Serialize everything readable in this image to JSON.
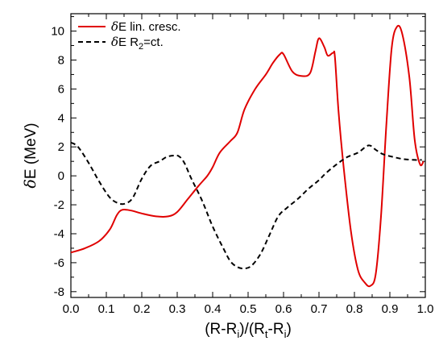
{
  "chart_data": {
    "type": "line",
    "xlabel": {
      "main": "(R-R",
      "sub1": "i",
      "mid": ")/(R",
      "sub2": "t",
      "mid2": "-R",
      "sub3": "i",
      "end": ")"
    },
    "ylabel": {
      "greek": "δ",
      "rest": "E (MeV)"
    },
    "xlim": [
      0,
      1
    ],
    "ylim": [
      -8.4,
      11.2
    ],
    "xticks": [
      0.0,
      0.1,
      0.2,
      0.3,
      0.4,
      0.5,
      0.6,
      0.7,
      0.8,
      0.9,
      1.0
    ],
    "xtick_labels": [
      "0.0",
      "0.1",
      "0.2",
      "0.3",
      "0.4",
      "0.5",
      "0.6",
      "0.7",
      "0.8",
      "0.9",
      "1.0"
    ],
    "yticks": [
      -8,
      -6,
      -4,
      -2,
      0,
      2,
      4,
      6,
      8,
      10
    ],
    "ytick_labels": [
      "-8",
      "-6",
      "-4",
      "-2",
      "0",
      "2",
      "4",
      "6",
      "8",
      "10"
    ],
    "legend_position": "top-left",
    "series": [
      {
        "name": {
          "greek": "δ",
          "rest": "E lin. cresc."
        },
        "color": "#e00000",
        "style": "solid",
        "points": [
          [
            0.0,
            -5.3
          ],
          [
            0.04,
            -5.0
          ],
          [
            0.08,
            -4.5
          ],
          [
            0.11,
            -3.7
          ],
          [
            0.13,
            -2.7
          ],
          [
            0.145,
            -2.35
          ],
          [
            0.17,
            -2.4
          ],
          [
            0.2,
            -2.6
          ],
          [
            0.24,
            -2.8
          ],
          [
            0.275,
            -2.8
          ],
          [
            0.3,
            -2.5
          ],
          [
            0.33,
            -1.6
          ],
          [
            0.36,
            -0.7
          ],
          [
            0.385,
            0.0
          ],
          [
            0.4,
            0.6
          ],
          [
            0.42,
            1.6
          ],
          [
            0.45,
            2.4
          ],
          [
            0.47,
            3.0
          ],
          [
            0.49,
            4.6
          ],
          [
            0.52,
            6.0
          ],
          [
            0.55,
            7.0
          ],
          [
            0.57,
            7.8
          ],
          [
            0.59,
            8.4
          ],
          [
            0.6,
            8.4
          ],
          [
            0.625,
            7.2
          ],
          [
            0.65,
            6.9
          ],
          [
            0.675,
            7.1
          ],
          [
            0.69,
            8.6
          ],
          [
            0.7,
            9.5
          ],
          [
            0.715,
            8.9
          ],
          [
            0.725,
            8.3
          ],
          [
            0.74,
            8.5
          ],
          [
            0.745,
            8.2
          ],
          [
            0.755,
            4.5
          ],
          [
            0.77,
            0.5
          ],
          [
            0.79,
            -3.8
          ],
          [
            0.81,
            -6.5
          ],
          [
            0.83,
            -7.4
          ],
          [
            0.845,
            -7.6
          ],
          [
            0.86,
            -6.8
          ],
          [
            0.875,
            -2.8
          ],
          [
            0.89,
            3.5
          ],
          [
            0.905,
            8.8
          ],
          [
            0.92,
            10.3
          ],
          [
            0.935,
            9.8
          ],
          [
            0.955,
            6.8
          ],
          [
            0.97,
            2.5
          ],
          [
            0.985,
            0.8
          ],
          [
            0.995,
            1.0
          ]
        ]
      },
      {
        "name": {
          "greek": "δ",
          "rest": "E R",
          "sub": "2",
          "tail": "=ct."
        },
        "color": "#000000",
        "style": "dashed",
        "points": [
          [
            0.0,
            2.3
          ],
          [
            0.02,
            2.0
          ],
          [
            0.05,
            0.9
          ],
          [
            0.08,
            -0.4
          ],
          [
            0.11,
            -1.5
          ],
          [
            0.135,
            -1.9
          ],
          [
            0.155,
            -1.9
          ],
          [
            0.175,
            -1.5
          ],
          [
            0.2,
            -0.2
          ],
          [
            0.225,
            0.7
          ],
          [
            0.25,
            1.0
          ],
          [
            0.27,
            1.3
          ],
          [
            0.29,
            1.4
          ],
          [
            0.305,
            1.35
          ],
          [
            0.32,
            0.9
          ],
          [
            0.34,
            -0.2
          ],
          [
            0.37,
            -1.7
          ],
          [
            0.4,
            -3.5
          ],
          [
            0.43,
            -5.0
          ],
          [
            0.45,
            -5.9
          ],
          [
            0.47,
            -6.3
          ],
          [
            0.49,
            -6.4
          ],
          [
            0.51,
            -6.2
          ],
          [
            0.535,
            -5.4
          ],
          [
            0.56,
            -4.1
          ],
          [
            0.585,
            -2.8
          ],
          [
            0.61,
            -2.2
          ],
          [
            0.64,
            -1.6
          ],
          [
            0.67,
            -0.9
          ],
          [
            0.7,
            -0.3
          ],
          [
            0.72,
            0.2
          ],
          [
            0.75,
            0.8
          ],
          [
            0.78,
            1.3
          ],
          [
            0.81,
            1.6
          ],
          [
            0.84,
            2.1
          ],
          [
            0.86,
            1.8
          ],
          [
            0.88,
            1.5
          ],
          [
            0.91,
            1.3
          ],
          [
            0.94,
            1.15
          ],
          [
            0.97,
            1.1
          ],
          [
            0.99,
            1.1
          ]
        ]
      }
    ]
  }
}
